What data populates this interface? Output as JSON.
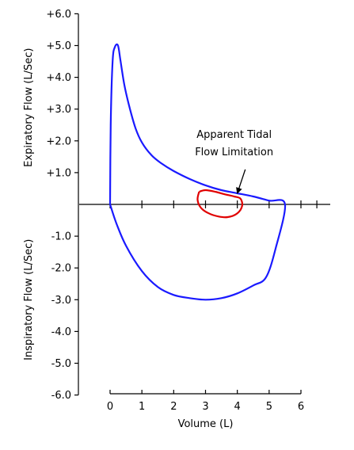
{
  "chart_data": {
    "type": "line",
    "title": "",
    "xlabel": "Volume (L)",
    "ylabel_top": "Expiratory Flow (L/Sec)",
    "ylabel_bottom": "Inspiratory Flow (L/Sec)",
    "xlim": [
      0,
      6
    ],
    "ylim": [
      -6,
      6
    ],
    "x_ticks": [
      0,
      1,
      2,
      3,
      4,
      5,
      6
    ],
    "x_tick_labels": [
      "0",
      "1",
      "2",
      "3",
      "4",
      "5",
      "6"
    ],
    "y_ticks": [
      6,
      5,
      4,
      3,
      2,
      1,
      -1,
      -2,
      -3,
      -4,
      -5,
      -6
    ],
    "y_tick_labels": [
      "+6.0",
      "+5.0",
      "+4.0",
      "+3.0",
      "+2.0",
      "+1.0",
      "-1.0",
      "-2.0",
      "-3.0",
      "-4.0",
      "-5.0",
      "-6.0"
    ],
    "grid": false,
    "series": [
      {
        "color": "#1a1aff",
        "x": [
          0.0,
          0.02,
          0.08,
          0.15,
          0.25,
          0.33,
          0.45,
          0.6,
          0.8,
          1.0,
          1.3,
          1.6,
          2.0,
          2.5,
          3.0,
          3.5,
          4.0,
          4.5,
          5.0,
          5.5,
          5.2,
          4.9,
          4.5,
          4.0,
          3.5,
          3.0,
          2.5,
          2.0,
          1.5,
          1.0,
          0.5,
          0.2,
          0.0
        ],
        "y": [
          0.0,
          2.5,
          4.5,
          4.95,
          5.0,
          4.5,
          3.75,
          3.1,
          2.4,
          1.95,
          1.55,
          1.3,
          1.05,
          0.8,
          0.6,
          0.45,
          0.35,
          0.25,
          0.12,
          0.0,
          -1.4,
          -2.3,
          -2.55,
          -2.8,
          -2.95,
          -3.0,
          -2.95,
          -2.85,
          -2.6,
          -2.1,
          -1.3,
          -0.6,
          0.0
        ]
      },
      {
        "color": "#e00000",
        "x": [
          2.8,
          3.0,
          3.3,
          3.6,
          3.9,
          4.1,
          4.15,
          4.0,
          3.7,
          3.4,
          3.1,
          2.85,
          2.75,
          2.8
        ],
        "y": [
          0.4,
          0.45,
          0.4,
          0.32,
          0.25,
          0.18,
          -0.05,
          -0.28,
          -0.4,
          -0.38,
          -0.28,
          -0.1,
          0.15,
          0.4
        ]
      }
    ],
    "annotations": [
      {
        "text": "Apparent Tidal",
        "x": 3.9,
        "y": 2.1
      },
      {
        "text": "Flow Limitation",
        "x": 3.9,
        "y": 1.55
      }
    ],
    "arrow": {
      "from": [
        4.25,
        1.1
      ],
      "to": [
        4.0,
        0.35
      ]
    }
  }
}
